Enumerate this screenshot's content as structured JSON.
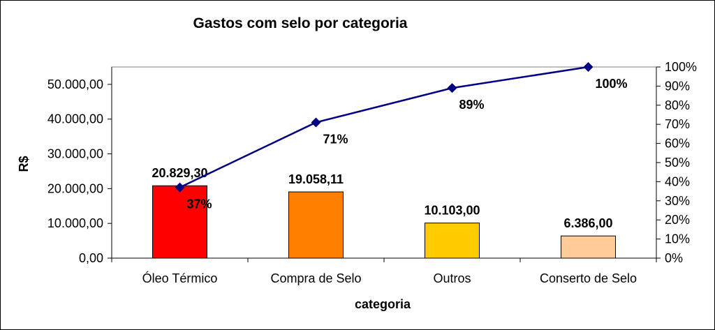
{
  "chart_data": {
    "type": "bar",
    "title": "Gastos com selo por categoria",
    "xlabel": "categoria",
    "ylabel": "R$",
    "categories": [
      "Óleo Térmico",
      "Compra de Selo",
      "Outros",
      "Conserto de Selo"
    ],
    "series": [
      {
        "type": "bar",
        "values": [
          20829.3,
          19058.11,
          10103.0,
          6386.0
        ],
        "labels": [
          "20.829,30",
          "19.058,11",
          "10.103,00",
          "6.386,00"
        ],
        "colors": [
          "#ff0000",
          "#ff8000",
          "#ffcc00",
          "#ffcc99"
        ]
      },
      {
        "type": "line",
        "axis": "secondary",
        "values": [
          37,
          71,
          89,
          100
        ],
        "labels": [
          "37%",
          "71%",
          "89%",
          "100%"
        ],
        "color": "#000080"
      }
    ],
    "ylim": [
      0,
      55000
    ],
    "y_ticks": [
      0,
      10000,
      20000,
      30000,
      40000,
      50000
    ],
    "y_tick_labels": [
      "0,00",
      "10.000,00",
      "20.000,00",
      "30.000,00",
      "40.000,00",
      "50.000,00"
    ],
    "y2lim": [
      0,
      100
    ],
    "y2_ticks": [
      0,
      10,
      20,
      30,
      40,
      50,
      60,
      70,
      80,
      90,
      100
    ],
    "y2_tick_labels": [
      "0%",
      "10%",
      "20%",
      "30%",
      "40%",
      "50%",
      "60%",
      "70%",
      "80%",
      "90%",
      "100%"
    ],
    "grid": false,
    "legend": "none"
  }
}
